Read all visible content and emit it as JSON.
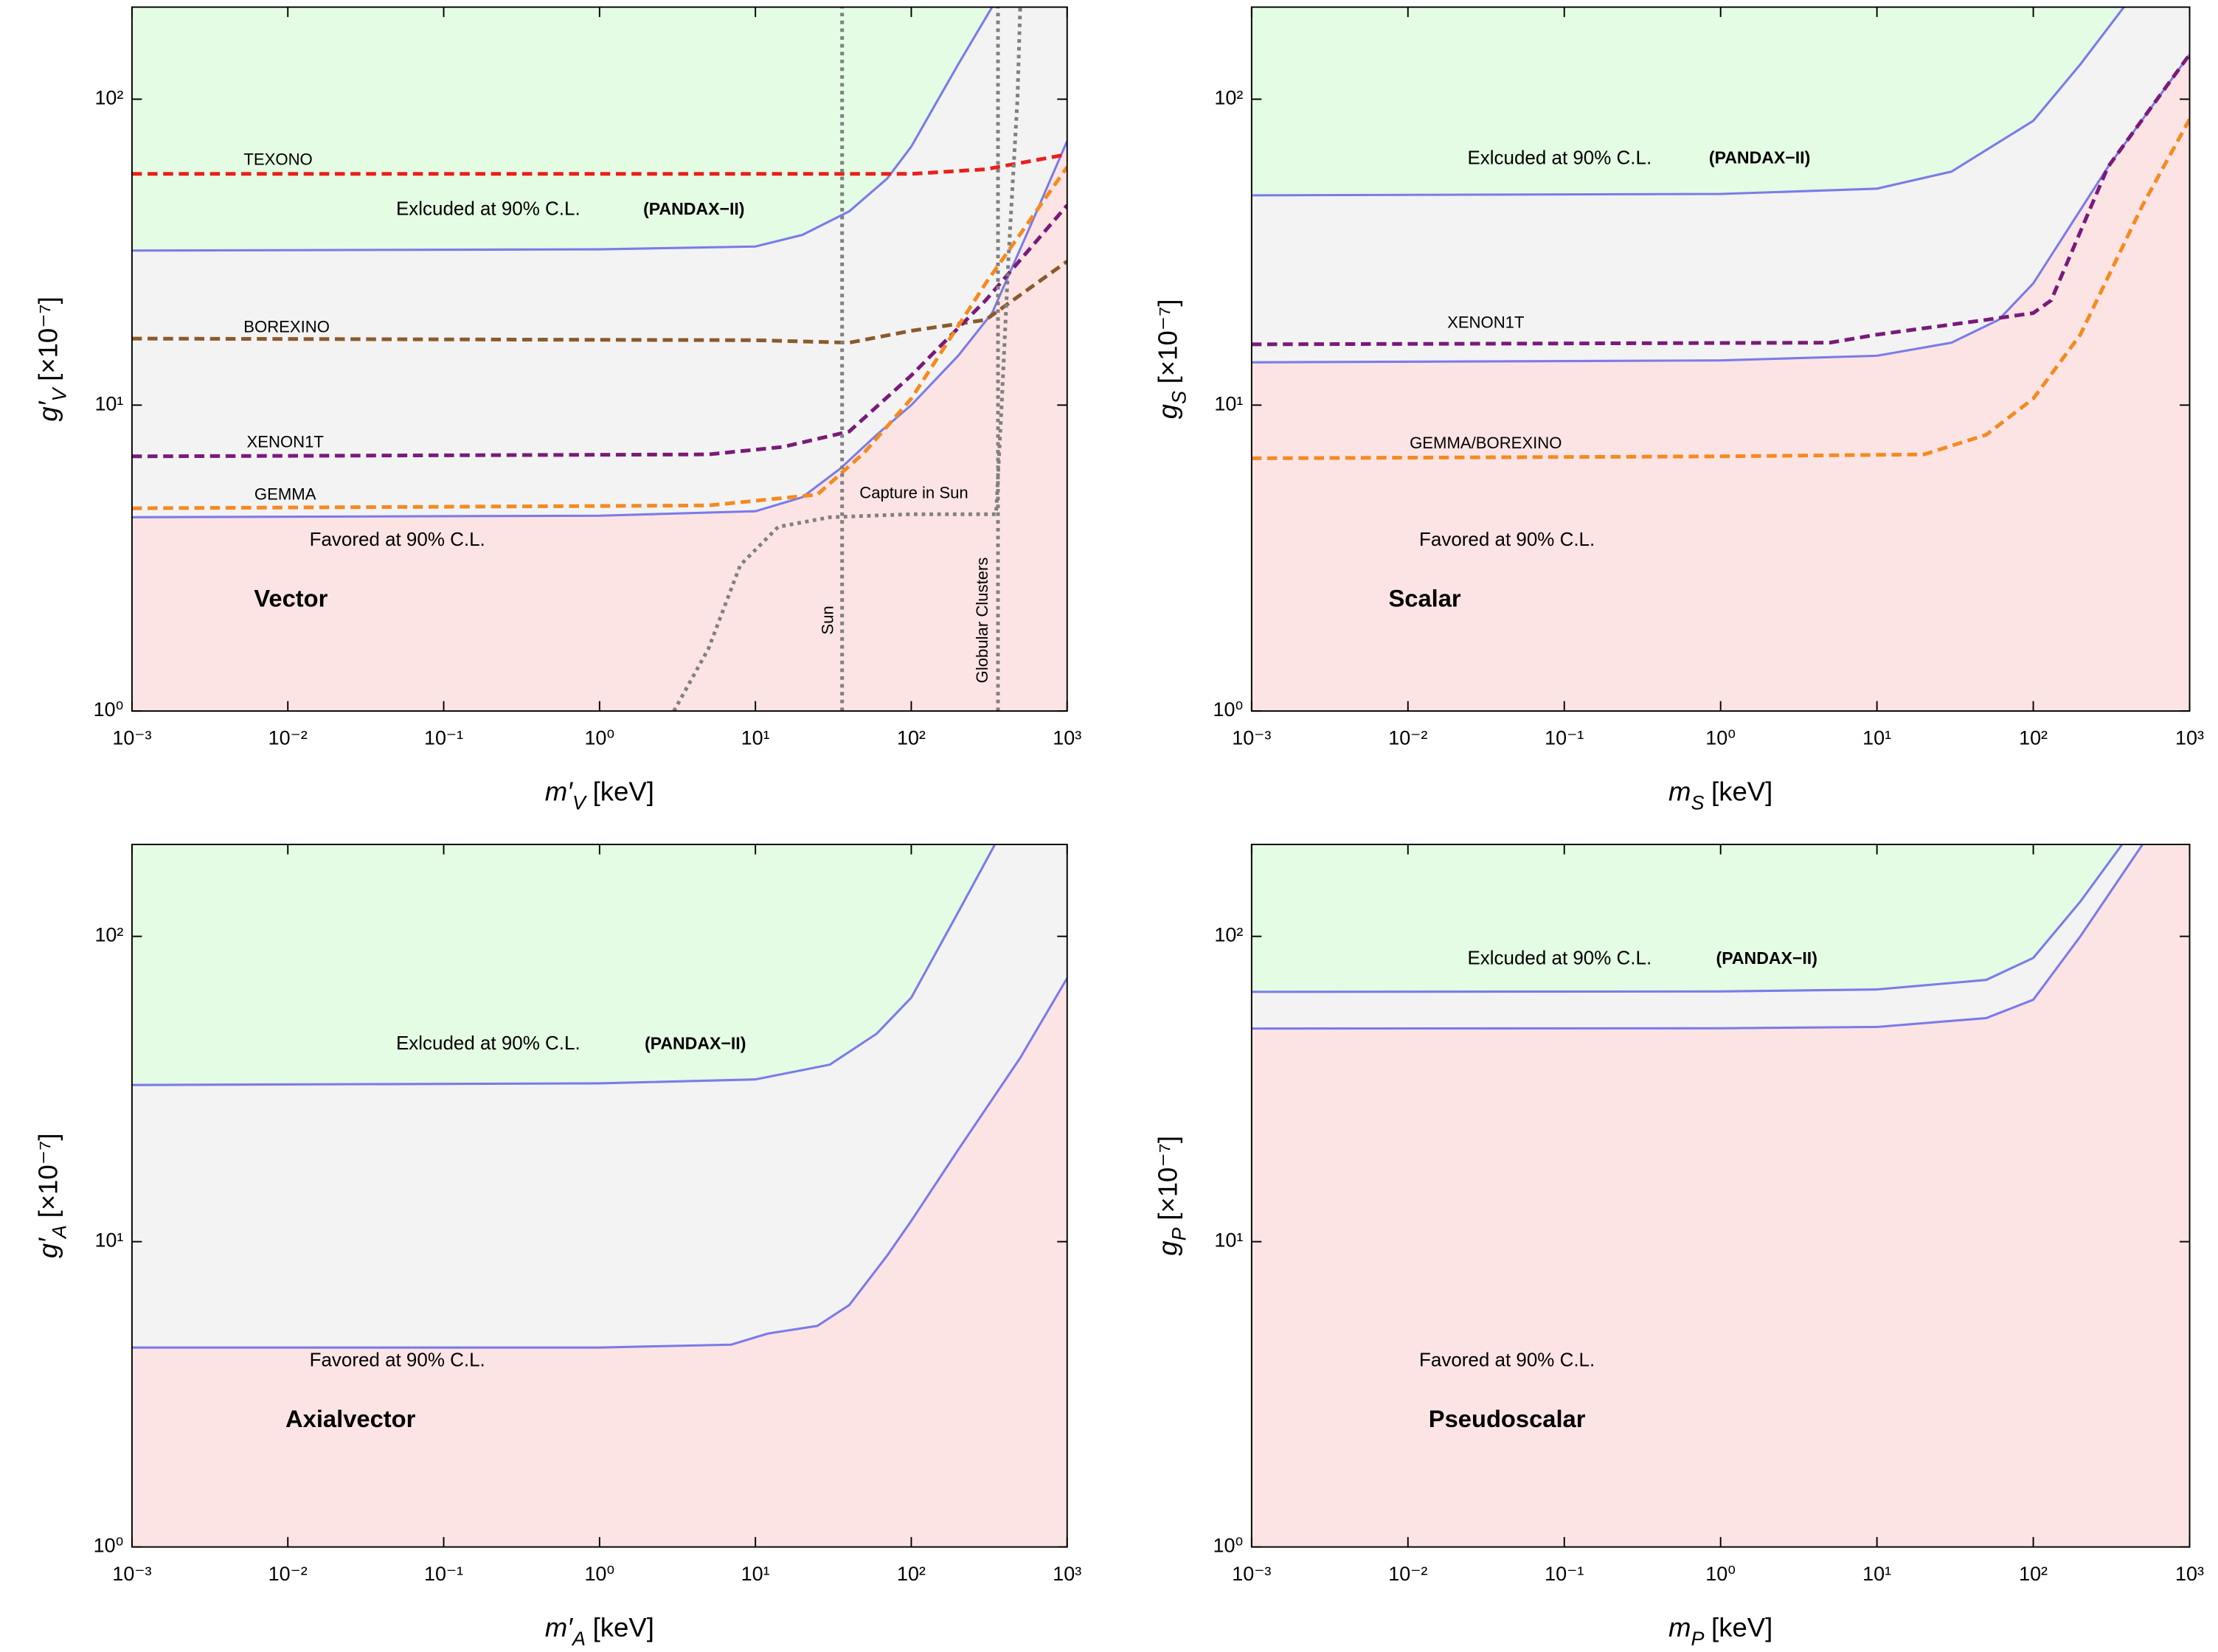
{
  "chart_data": [
    {
      "type": "line",
      "xlog": true,
      "ylog": true,
      "xlabel": {
        "symbol": "m′",
        "subscript": "V",
        "unit": "[keV]"
      },
      "ylabel": {
        "symbol": "g′",
        "subscript": "V",
        "unit": "[×10⁻⁷]"
      },
      "xlim": [
        0.001,
        1000
      ],
      "ylim": [
        1,
        200
      ],
      "xticks": [
        {
          "value": 0.001,
          "label": "10⁻³"
        },
        {
          "value": 0.01,
          "label": "10⁻²"
        },
        {
          "value": 0.1,
          "label": "10⁻¹"
        },
        {
          "value": 1,
          "label": "10⁰"
        },
        {
          "value": 10,
          "label": "10¹"
        },
        {
          "value": 100,
          "label": "10²"
        },
        {
          "value": 1000,
          "label": "10³"
        }
      ],
      "yticks": [
        {
          "value": 1,
          "label": "10⁰"
        },
        {
          "value": 10,
          "label": "10¹"
        },
        {
          "value": 100,
          "label": "10²"
        }
      ],
      "fills": {
        "above": "#e4fbe4",
        "between": "#f3f3f3",
        "below": "#fde4e4"
      },
      "series": [
        {
          "color": "#7b7be8",
          "style": "solid",
          "boundary": "upper",
          "x": [
            0.001,
            1,
            10,
            20,
            40,
            70,
            100,
            200,
            330
          ],
          "values": [
            32,
            32.3,
            33,
            36,
            43,
            55,
            70,
            130,
            200
          ]
        },
        {
          "color": "#7b7be8",
          "style": "solid",
          "boundary": "lower",
          "x": [
            0.001,
            1,
            10,
            20,
            35,
            60,
            100,
            200,
            330,
            600,
            1000
          ],
          "values": [
            4.3,
            4.35,
            4.5,
            5,
            6.2,
            8,
            10,
            14.5,
            20,
            40,
            73
          ]
        },
        {
          "name": "TEXONO",
          "color": "#e8201c",
          "style": "dashed",
          "x": [
            0.001,
            100,
            300,
            1000
          ],
          "values": [
            57,
            57,
            59,
            66
          ]
        },
        {
          "name": "BOREXINO",
          "color": "#8b5a2b",
          "style": "dashed",
          "x": [
            0.001,
            10,
            40,
            100,
            300,
            1000
          ],
          "values": [
            16.5,
            16.3,
            16,
            17.5,
            19,
            29.5
          ]
        },
        {
          "name": "XENON1T",
          "color": "#7a1a7a",
          "style": "dashed",
          "x": [
            0.001,
            5,
            15,
            40,
            100,
            300,
            1000
          ],
          "values": [
            6.8,
            6.9,
            7.3,
            8.2,
            12.5,
            22,
            45
          ]
        },
        {
          "name": "GEMMA",
          "color": "#f58a1f",
          "style": "dashed",
          "x": [
            0.001,
            5,
            25,
            50,
            100,
            300,
            1000
          ],
          "values": [
            4.6,
            4.7,
            5.1,
            7,
            10.5,
            25,
            60
          ]
        },
        {
          "name": "Capture in Sun",
          "color": "#808080",
          "style": "dotted",
          "x": [
            3,
            5,
            8,
            14,
            30,
            100,
            350,
            380,
            420,
            480,
            500
          ],
          "values": [
            1,
            1.6,
            3,
            4,
            4.3,
            4.4,
            4.4,
            10,
            30,
            100,
            200
          ]
        },
        {
          "name": "Sun",
          "color": "#808080",
          "style": "dotted",
          "x": [
            36,
            36
          ],
          "values": [
            1,
            200
          ]
        },
        {
          "name": "Globular Clusters",
          "color": "#808080",
          "style": "dotted",
          "x": [
            360,
            360
          ],
          "values": [
            1,
            200
          ]
        }
      ],
      "annotations": [
        "Exlcuded at 90% C.L.",
        "(PANDAX−II)",
        "Favored at 90% C.L.",
        "Vector"
      ]
    },
    {
      "type": "line",
      "xlog": true,
      "ylog": true,
      "xlabel": {
        "symbol": "m",
        "subscript": "S",
        "unit": "[keV]"
      },
      "ylabel": {
        "symbol": "g",
        "subscript": "S",
        "unit": "[×10⁻⁷]"
      },
      "xlim": [
        0.001,
        1000
      ],
      "ylim": [
        1,
        200
      ],
      "xticks": [
        {
          "value": 0.001,
          "label": "10⁻³"
        },
        {
          "value": 0.01,
          "label": "10⁻²"
        },
        {
          "value": 0.1,
          "label": "10⁻¹"
        },
        {
          "value": 1,
          "label": "10⁰"
        },
        {
          "value": 10,
          "label": "10¹"
        },
        {
          "value": 100,
          "label": "10²"
        },
        {
          "value": 1000,
          "label": "10³"
        }
      ],
      "yticks": [
        {
          "value": 1,
          "label": "10⁰"
        },
        {
          "value": 10,
          "label": "10¹"
        },
        {
          "value": 100,
          "label": "10²"
        }
      ],
      "fills": {
        "above": "#e4fbe4",
        "between": "#f3f3f3",
        "below": "#fde4e4"
      },
      "series": [
        {
          "color": "#7b7be8",
          "style": "solid",
          "boundary": "upper",
          "x": [
            0.001,
            1,
            10,
            30,
            100,
            200,
            380
          ],
          "values": [
            48.5,
            49,
            51,
            58,
            85,
            130,
            200
          ]
        },
        {
          "color": "#7b7be8",
          "style": "solid",
          "boundary": "lower",
          "x": [
            0.001,
            1,
            10,
            30,
            60,
            100,
            300,
            1000
          ],
          "values": [
            13.8,
            14,
            14.5,
            16,
            19,
            25,
            60,
            140
          ]
        },
        {
          "name": "XENON1T",
          "color": "#7a1a7a",
          "style": "dashed",
          "x": [
            0.001,
            5,
            10,
            50,
            100,
            130,
            300,
            1000
          ],
          "values": [
            15.8,
            16,
            17,
            19,
            20,
            22,
            60,
            140
          ]
        },
        {
          "name": "GEMMA/BOREXINO",
          "color": "#f58a1f",
          "style": "dashed",
          "x": [
            0.001,
            1,
            20,
            50,
            100,
            200,
            500,
            1000
          ],
          "values": [
            6.7,
            6.8,
            6.9,
            8,
            10.5,
            17,
            45,
            86
          ]
        }
      ],
      "annotations": [
        "Exlcuded at 90% C.L.",
        "(PANDAX−II)",
        "Favored at 90% C.L.",
        "Scalar"
      ]
    },
    {
      "type": "line",
      "xlog": true,
      "ylog": true,
      "xlabel": {
        "symbol": "m′",
        "subscript": "A",
        "unit": "[keV]"
      },
      "ylabel": {
        "symbol": "g′",
        "subscript": "A",
        "unit": "[×10⁻⁷]"
      },
      "xlim": [
        0.001,
        1000
      ],
      "ylim": [
        1,
        200
      ],
      "xticks": [
        {
          "value": 0.001,
          "label": "10⁻³"
        },
        {
          "value": 0.01,
          "label": "10⁻²"
        },
        {
          "value": 0.1,
          "label": "10⁻¹"
        },
        {
          "value": 1,
          "label": "10⁰"
        },
        {
          "value": 10,
          "label": "10¹"
        },
        {
          "value": 100,
          "label": "10²"
        },
        {
          "value": 1000,
          "label": "10³"
        }
      ],
      "yticks": [
        {
          "value": 1,
          "label": "10⁰"
        },
        {
          "value": 10,
          "label": "10¹"
        },
        {
          "value": 100,
          "label": "10²"
        }
      ],
      "fills": {
        "above": "#e4fbe4",
        "between": "#f3f3f3",
        "below": "#fde4e4"
      },
      "series": [
        {
          "color": "#7b7be8",
          "style": "solid",
          "boundary": "upper",
          "x": [
            0.001,
            1,
            10,
            30,
            60,
            100,
            200,
            344
          ],
          "values": [
            32.6,
            33,
            34,
            38,
            48,
            63,
            120,
            200
          ]
        },
        {
          "color": "#7b7be8",
          "style": "solid",
          "boundary": "lower",
          "x": [
            0.001,
            1,
            7,
            12,
            25,
            40,
            70,
            100,
            200,
            500,
            1000
          ],
          "values": [
            4.5,
            4.5,
            4.6,
            5,
            5.3,
            6.2,
            9,
            11.7,
            20,
            40,
            73
          ]
        }
      ],
      "annotations": [
        "Exlcuded at 90% C.L.",
        "(PANDAX−II)",
        "Favored at 90% C.L.",
        "Axialvector"
      ]
    },
    {
      "type": "line",
      "xlog": true,
      "ylog": true,
      "xlabel": {
        "symbol": "m",
        "subscript": "P",
        "unit": "[keV]"
      },
      "ylabel": {
        "symbol": "g",
        "subscript": "P",
        "unit": "[×10⁻⁷]"
      },
      "xlim": [
        0.001,
        1000
      ],
      "ylim": [
        1,
        200
      ],
      "xticks": [
        {
          "value": 0.001,
          "label": "10⁻³"
        },
        {
          "value": 0.01,
          "label": "10⁻²"
        },
        {
          "value": 0.1,
          "label": "10⁻¹"
        },
        {
          "value": 1,
          "label": "10⁰"
        },
        {
          "value": 10,
          "label": "10¹"
        },
        {
          "value": 100,
          "label": "10²"
        },
        {
          "value": 1000,
          "label": "10³"
        }
      ],
      "yticks": [
        {
          "value": 1,
          "label": "10⁰"
        },
        {
          "value": 10,
          "label": "10¹"
        },
        {
          "value": 100,
          "label": "10²"
        }
      ],
      "fills": {
        "above": "#e4fbe4",
        "between": "#f3f3f3",
        "below": "#fde4e4"
      },
      "series": [
        {
          "color": "#7b7be8",
          "style": "solid",
          "boundary": "upper",
          "x": [
            0.001,
            1,
            10,
            50,
            100,
            200,
            370
          ],
          "values": [
            65.8,
            66,
            67,
            72,
            85,
            130,
            200
          ]
        },
        {
          "color": "#7b7be8",
          "style": "solid",
          "boundary": "lower",
          "x": [
            0.001,
            1,
            10,
            50,
            100,
            200,
            500
          ],
          "values": [
            49.9,
            50,
            50.5,
            54,
            62,
            100,
            200
          ]
        }
      ],
      "annotations": [
        "Exlcuded at 90% C.L.",
        "(PANDAX−II)",
        "Favored at 90% C.L.",
        "Pseudoscalar"
      ]
    }
  ]
}
